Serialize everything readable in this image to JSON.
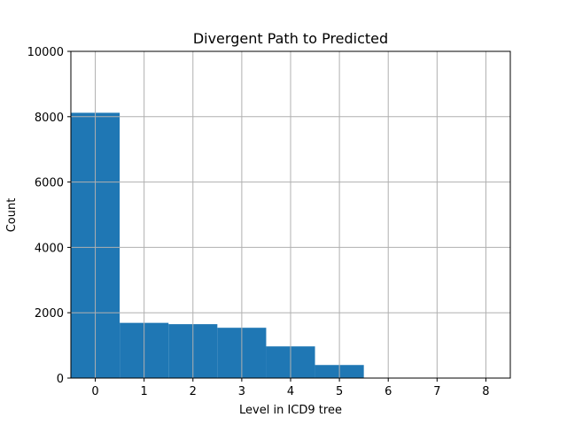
{
  "chart_data": {
    "type": "bar",
    "title": "Divergent Path to Predicted",
    "xlabel": "Level in ICD9 tree",
    "ylabel": "Count",
    "categories": [
      "0",
      "1",
      "2",
      "3",
      "4",
      "5",
      "6",
      "7",
      "8"
    ],
    "x": [
      0,
      1,
      2,
      3,
      4,
      5,
      6,
      7,
      8
    ],
    "values": [
      8120,
      1690,
      1650,
      1540,
      970,
      400,
      0,
      0,
      0
    ],
    "xlim": [
      -0.5,
      8.5
    ],
    "ylim": [
      0,
      10000
    ],
    "xticks": [
      "0",
      "1",
      "2",
      "3",
      "4",
      "5",
      "6",
      "7",
      "8"
    ],
    "yticks": [
      "0",
      "2000",
      "4000",
      "6000",
      "8000",
      "10000"
    ],
    "grid": true,
    "bar_color": "#1f77b4"
  }
}
